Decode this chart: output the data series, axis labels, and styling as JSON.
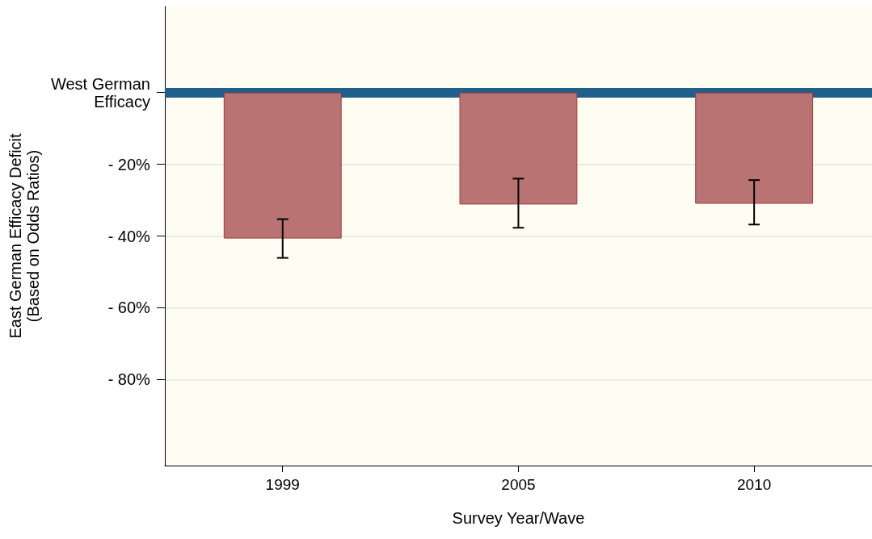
{
  "chart_data": {
    "type": "bar",
    "xlabel": "Survey Year/Wave",
    "ylabel": "East German Efficacy Deficit\n(Based on Odds Ratios)",
    "categories": [
      "1999",
      "2005",
      "2010"
    ],
    "series": [
      {
        "color": "#b87372",
        "values": [
          -40.7,
          -31.2,
          -31.0
        ],
        "errors": [
          [
            -46.1,
            -35.3
          ],
          [
            -37.7,
            -24.0
          ],
          [
            -36.8,
            -24.4
          ]
        ]
      }
    ],
    "ylim": [
      -104,
      24
    ],
    "yticks": [
      {
        "value": 0,
        "label": "West German\nEfficacy"
      },
      {
        "value": -20,
        "label": "- 20%"
      },
      {
        "value": -40,
        "label": "- 40%"
      },
      {
        "value": -60,
        "label": "- 60%"
      },
      {
        "value": -80,
        "label": "- 80%"
      }
    ],
    "ref_lines": [
      {
        "axis": "y",
        "value": 0,
        "color": "#1f5f8b"
      }
    ],
    "grid": "y"
  }
}
